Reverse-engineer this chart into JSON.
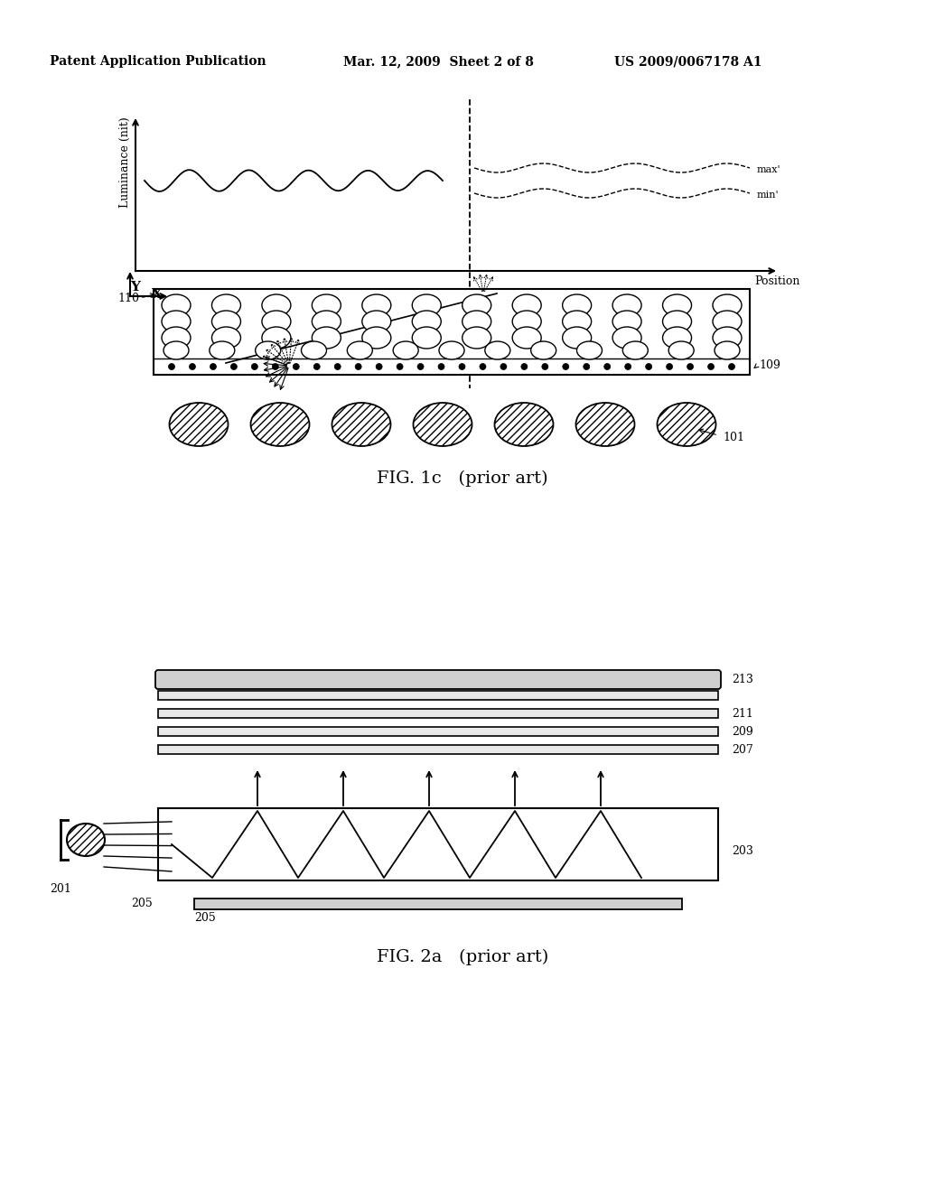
{
  "bg_color": "#ffffff",
  "header_left": "Patent Application Publication",
  "header_mid": "Mar. 12, 2009  Sheet 2 of 8",
  "header_right": "US 2009/0067178 A1",
  "fig1c_label": "FIG. 1c",
  "fig1c_sub": "(prior art)",
  "fig2a_label": "FIG. 2a",
  "fig2a_sub": "(prior art)"
}
